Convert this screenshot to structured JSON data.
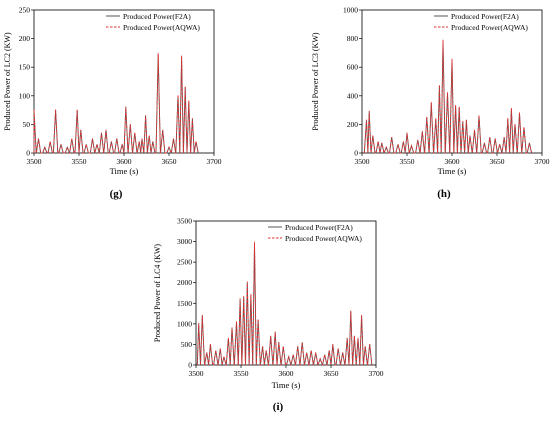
{
  "chart_data": [
    {
      "type": "line",
      "panel_label": "(g)",
      "xlabel": "Time (s)",
      "ylabel": "Produced Power of LC2 (KW)",
      "xlim": [
        3500,
        3700
      ],
      "ylim": [
        0,
        250
      ],
      "x_ticks": [
        "3500",
        "3550",
        "3600",
        "3650",
        "3700"
      ],
      "y_ticks": [
        "0",
        "50",
        "100",
        "150",
        "200",
        "250"
      ],
      "legend_position": "top-right",
      "series": [
        {
          "name": "Produced Power(F2A)",
          "color": "#555555",
          "style": "solid"
        },
        {
          "name": "Produced Power(AQWA)",
          "color": "#e03030",
          "style": "dashed"
        }
      ],
      "peaks": [
        [
          3500,
          75
        ],
        [
          3505,
          25
        ],
        [
          3512,
          10
        ],
        [
          3518,
          20
        ],
        [
          3524,
          75
        ],
        [
          3530,
          15
        ],
        [
          3537,
          10
        ],
        [
          3542,
          25
        ],
        [
          3548,
          75
        ],
        [
          3552,
          40
        ],
        [
          3558,
          15
        ],
        [
          3565,
          25
        ],
        [
          3570,
          15
        ],
        [
          3575,
          35
        ],
        [
          3580,
          40
        ],
        [
          3586,
          20
        ],
        [
          3592,
          25
        ],
        [
          3598,
          15
        ],
        [
          3602,
          80
        ],
        [
          3607,
          50
        ],
        [
          3612,
          35
        ],
        [
          3617,
          20
        ],
        [
          3620,
          25
        ],
        [
          3624,
          65
        ],
        [
          3628,
          30
        ],
        [
          3632,
          20
        ],
        [
          3638,
          172
        ],
        [
          3643,
          40
        ],
        [
          3650,
          10
        ],
        [
          3655,
          25
        ],
        [
          3660,
          100
        ],
        [
          3664,
          168
        ],
        [
          3668,
          115
        ],
        [
          3672,
          90
        ],
        [
          3676,
          60
        ],
        [
          3680,
          20
        ]
      ]
    },
    {
      "type": "line",
      "panel_label": "(h)",
      "xlabel": "Time (s)",
      "ylabel": "Produced Power of LC3 (KW)",
      "xlim": [
        3500,
        3700
      ],
      "ylim": [
        0,
        1000
      ],
      "x_ticks": [
        "3500",
        "3550",
        "3600",
        "3650",
        "3700"
      ],
      "y_ticks": [
        "0",
        "200",
        "400",
        "600",
        "800",
        "1000"
      ],
      "legend_position": "top-right",
      "series": [
        {
          "name": "Produced Power(F2A)",
          "color": "#555555",
          "style": "solid"
        },
        {
          "name": "Produced Power(AQWA)",
          "color": "#e03030",
          "style": "dashed"
        }
      ],
      "peaks": [
        [
          3505,
          230
        ],
        [
          3508,
          290
        ],
        [
          3512,
          120
        ],
        [
          3518,
          80
        ],
        [
          3522,
          70
        ],
        [
          3527,
          40
        ],
        [
          3533,
          110
        ],
        [
          3540,
          60
        ],
        [
          3546,
          80
        ],
        [
          3550,
          140
        ],
        [
          3555,
          50
        ],
        [
          3562,
          90
        ],
        [
          3567,
          150
        ],
        [
          3572,
          250
        ],
        [
          3577,
          350
        ],
        [
          3582,
          240
        ],
        [
          3586,
          470
        ],
        [
          3590,
          780
        ],
        [
          3595,
          420
        ],
        [
          3600,
          650
        ],
        [
          3604,
          330
        ],
        [
          3608,
          320
        ],
        [
          3612,
          220
        ],
        [
          3616,
          230
        ],
        [
          3620,
          120
        ],
        [
          3625,
          160
        ],
        [
          3630,
          260
        ],
        [
          3636,
          70
        ],
        [
          3642,
          110
        ],
        [
          3648,
          100
        ],
        [
          3653,
          60
        ],
        [
          3658,
          110
        ],
        [
          3662,
          240
        ],
        [
          3666,
          310
        ],
        [
          3670,
          200
        ],
        [
          3675,
          280
        ],
        [
          3680,
          180
        ],
        [
          3686,
          70
        ]
      ]
    },
    {
      "type": "line",
      "panel_label": "(i)",
      "xlabel": "Time (s)",
      "ylabel": "Produced Power of LC4 (KW)",
      "xlim": [
        3500,
        3700
      ],
      "ylim": [
        0,
        3500
      ],
      "x_ticks": [
        "3500",
        "3550",
        "3600",
        "3650",
        "3700"
      ],
      "y_ticks": [
        "0",
        "500",
        "1000",
        "1500",
        "2000",
        "2500",
        "3000",
        "3500"
      ],
      "legend_position": "top-right",
      "series": [
        {
          "name": "Produced Power(F2A)",
          "color": "#555555",
          "style": "solid"
        },
        {
          "name": "Produced Power(AQWA)",
          "color": "#e03030",
          "style": "dashed"
        }
      ],
      "peaks": [
        [
          3503,
          1000
        ],
        [
          3507,
          1200
        ],
        [
          3512,
          300
        ],
        [
          3516,
          500
        ],
        [
          3522,
          350
        ],
        [
          3527,
          400
        ],
        [
          3531,
          200
        ],
        [
          3536,
          650
        ],
        [
          3540,
          900
        ],
        [
          3545,
          1050
        ],
        [
          3549,
          1600
        ],
        [
          3553,
          1650
        ],
        [
          3557,
          2000
        ],
        [
          3561,
          1700
        ],
        [
          3565,
          2950
        ],
        [
          3569,
          1100
        ],
        [
          3574,
          450
        ],
        [
          3578,
          350
        ],
        [
          3583,
          700
        ],
        [
          3588,
          800
        ],
        [
          3592,
          550
        ],
        [
          3597,
          450
        ],
        [
          3603,
          200
        ],
        [
          3608,
          250
        ],
        [
          3613,
          450
        ],
        [
          3618,
          550
        ],
        [
          3623,
          300
        ],
        [
          3628,
          350
        ],
        [
          3633,
          300
        ],
        [
          3638,
          150
        ],
        [
          3643,
          250
        ],
        [
          3648,
          350
        ],
        [
          3652,
          500
        ],
        [
          3658,
          400
        ],
        [
          3663,
          300
        ],
        [
          3668,
          650
        ],
        [
          3672,
          1300
        ],
        [
          3676,
          700
        ],
        [
          3680,
          650
        ],
        [
          3684,
          1200
        ],
        [
          3688,
          450
        ],
        [
          3693,
          500
        ]
      ]
    }
  ]
}
